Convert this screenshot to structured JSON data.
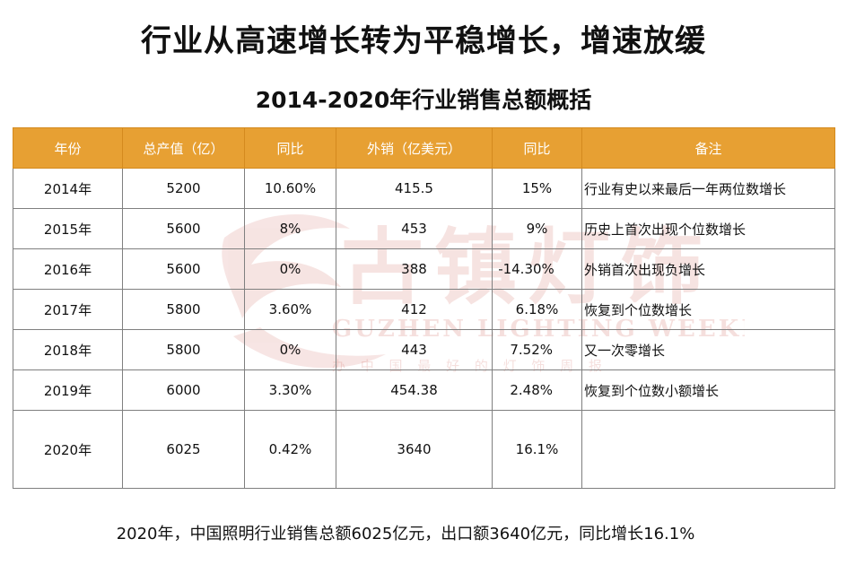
{
  "title": "行业从高速增长转为平稳增长，增速放缓",
  "subtitle": "2014-2020年行业销售总额概括",
  "watermark": {
    "chinese": "古镇灯饰",
    "english": "GUZHEN LIGHTING WEEKLY",
    "tagline": "办 中 国 最 好 的 灯 饰 周 报"
  },
  "table": {
    "headers": [
      "年份",
      "总产值（亿）",
      "同比",
      "外销（亿美元）",
      "同比",
      "备注"
    ],
    "rows": [
      [
        "2014年",
        "5200",
        "10.60%",
        "415.5",
        "15%",
        "行业有史以来最后一年两位数增长"
      ],
      [
        "2015年",
        "5600",
        "8%",
        "453",
        "9%",
        "历史上首次出现个位数增长"
      ],
      [
        "2016年",
        "5600",
        "0%",
        "388",
        "-14.30%",
        "外销首次出现负增长"
      ],
      [
        "2017年",
        "5800",
        "3.60%",
        "412",
        "6.18%",
        "恢复到个位数增长"
      ],
      [
        "2018年",
        "5800",
        "0%",
        "443",
        "7.52%",
        "又一次零增长"
      ],
      [
        "2019年",
        "6000",
        "3.30%",
        "454.38",
        "2.48%",
        "恢复到个位数小额增长"
      ],
      [
        "2020年",
        "6025",
        "0.42%",
        "3640",
        "16.1%",
        ""
      ]
    ]
  },
  "footer": "2020年，中国照明行业销售总额6025亿元，出口额3640亿元，同比增长16.1%"
}
